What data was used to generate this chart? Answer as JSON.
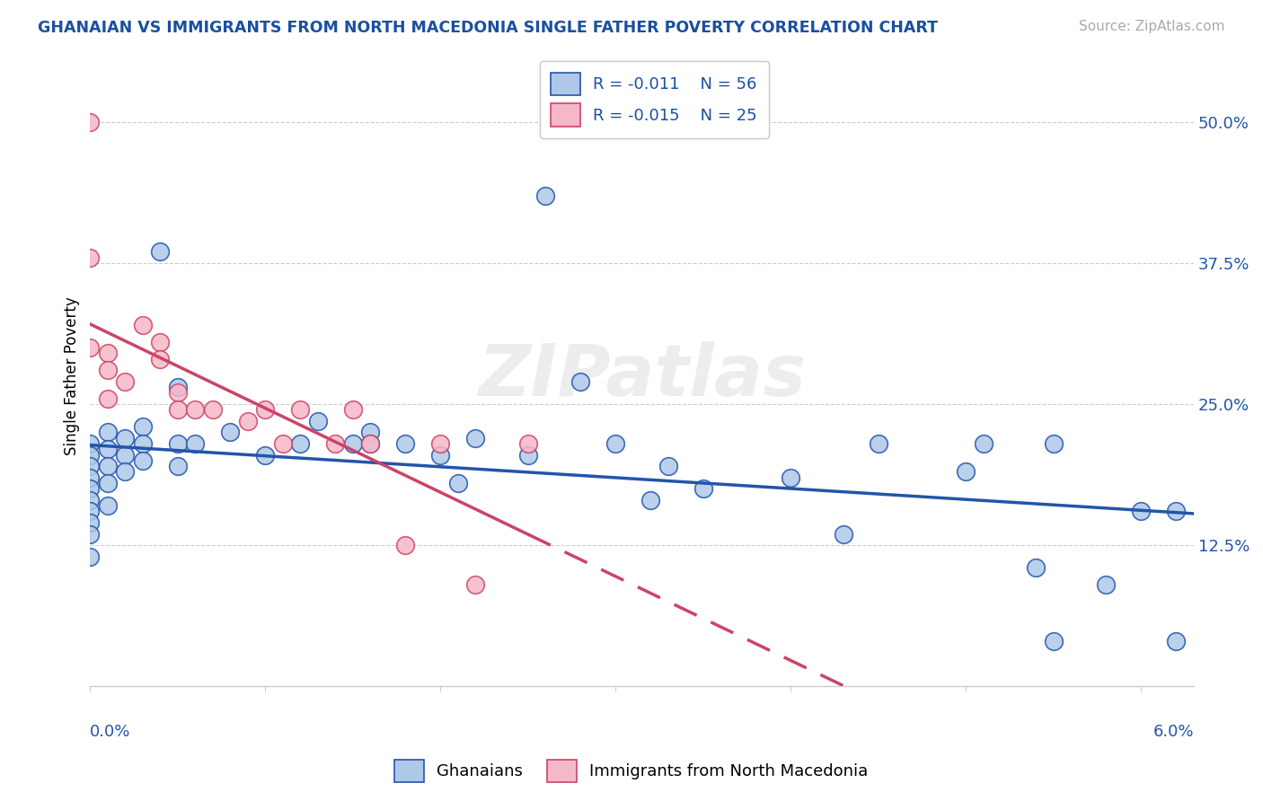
{
  "title": "GHANAIAN VS IMMIGRANTS FROM NORTH MACEDONIA SINGLE FATHER POVERTY CORRELATION CHART",
  "source_text": "Source: ZipAtlas.com",
  "ylabel": "Single Father Poverty",
  "ylim": [
    0.0,
    0.55
  ],
  "xlim": [
    0.0,
    0.063
  ],
  "ytick_vals": [
    0.0,
    0.125,
    0.25,
    0.375,
    0.5
  ],
  "ytick_labels": [
    "",
    "12.5%",
    "25.0%",
    "37.5%",
    "50.0%"
  ],
  "blue_face": "#aec8e8",
  "blue_edge": "#2255aa",
  "pink_face": "#f5b8c8",
  "pink_edge": "#cc4466",
  "blue_trend": "#2255aa",
  "pink_trend": "#cc4466",
  "title_color": "#1a4fa0",
  "source_color": "#aaaaaa",
  "grid_color": "#cccccc",
  "watermark": "ZIPatlas",
  "legend_R1": "-0.011",
  "legend_N1": "56",
  "legend_R2": "-0.015",
  "legend_N2": "25",
  "blue_x": [
    0.0,
    0.0,
    0.0,
    0.0,
    0.0,
    0.0,
    0.0,
    0.0,
    0.0,
    0.0,
    0.001,
    0.001,
    0.001,
    0.001,
    0.001,
    0.002,
    0.002,
    0.002,
    0.003,
    0.003,
    0.003,
    0.004,
    0.005,
    0.005,
    0.005,
    0.006,
    0.008,
    0.01,
    0.012,
    0.013,
    0.015,
    0.016,
    0.016,
    0.018,
    0.02,
    0.021,
    0.022,
    0.025,
    0.026,
    0.028,
    0.03,
    0.032,
    0.033,
    0.035,
    0.04,
    0.043,
    0.045,
    0.05,
    0.051,
    0.054,
    0.055,
    0.058,
    0.06,
    0.062,
    0.062,
    0.055
  ],
  "blue_y": [
    0.215,
    0.205,
    0.195,
    0.185,
    0.175,
    0.165,
    0.155,
    0.145,
    0.135,
    0.115,
    0.225,
    0.21,
    0.195,
    0.18,
    0.16,
    0.22,
    0.205,
    0.19,
    0.23,
    0.215,
    0.2,
    0.385,
    0.265,
    0.215,
    0.195,
    0.215,
    0.225,
    0.205,
    0.215,
    0.235,
    0.215,
    0.225,
    0.215,
    0.215,
    0.205,
    0.18,
    0.22,
    0.205,
    0.435,
    0.27,
    0.215,
    0.165,
    0.195,
    0.175,
    0.185,
    0.135,
    0.215,
    0.19,
    0.215,
    0.105,
    0.215,
    0.09,
    0.155,
    0.155,
    0.04,
    0.04
  ],
  "pink_x": [
    0.0,
    0.0,
    0.0,
    0.001,
    0.001,
    0.001,
    0.002,
    0.003,
    0.004,
    0.004,
    0.005,
    0.005,
    0.006,
    0.007,
    0.009,
    0.01,
    0.011,
    0.012,
    0.014,
    0.015,
    0.016,
    0.018,
    0.02,
    0.022,
    0.025
  ],
  "pink_y": [
    0.5,
    0.38,
    0.3,
    0.295,
    0.28,
    0.255,
    0.27,
    0.32,
    0.305,
    0.29,
    0.26,
    0.245,
    0.245,
    0.245,
    0.235,
    0.245,
    0.215,
    0.245,
    0.215,
    0.245,
    0.215,
    0.125,
    0.215,
    0.09,
    0.215
  ]
}
